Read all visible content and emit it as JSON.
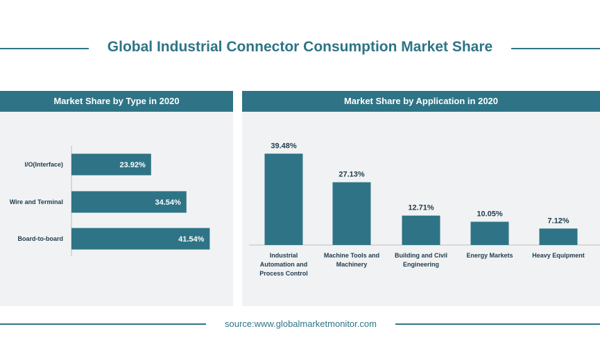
{
  "title": "Global Industrial Connector Consumption Market Share",
  "source": "source:www.globalmarketmonitor.com",
  "colors": {
    "accent": "#2e7486",
    "panel_bg": "#f1f2f3",
    "bar_label": "#ffffff",
    "axis": "#bfbfbf",
    "text": "#1f3b4d"
  },
  "chart_data": [
    {
      "type": "bar",
      "orientation": "horizontal",
      "title": "Market Share by Type in 2020",
      "categories": [
        "I/O(Interface)",
        "Wire and Terminal",
        "Board-to-board"
      ],
      "values": [
        23.92,
        34.54,
        41.54
      ],
      "value_labels": [
        "23.92%",
        "34.54%",
        "41.54%"
      ],
      "xlim": [
        0,
        50
      ],
      "grid": false,
      "legend": "none"
    },
    {
      "type": "bar",
      "orientation": "vertical",
      "title": "Market Share by Application in 2020",
      "categories": [
        "Industrial Automation and Process Control",
        "Machine Tools and Machinery",
        "Building and Civil Engineering",
        "Energy Markets",
        "Heavy Equipment"
      ],
      "values": [
        39.48,
        27.13,
        12.71,
        10.05,
        7.12
      ],
      "value_labels": [
        "39.48%",
        "27.13%",
        "12.71%",
        "10.05%",
        "7.12%"
      ],
      "ylim": [
        0,
        45
      ],
      "grid": false,
      "legend": "none"
    }
  ]
}
